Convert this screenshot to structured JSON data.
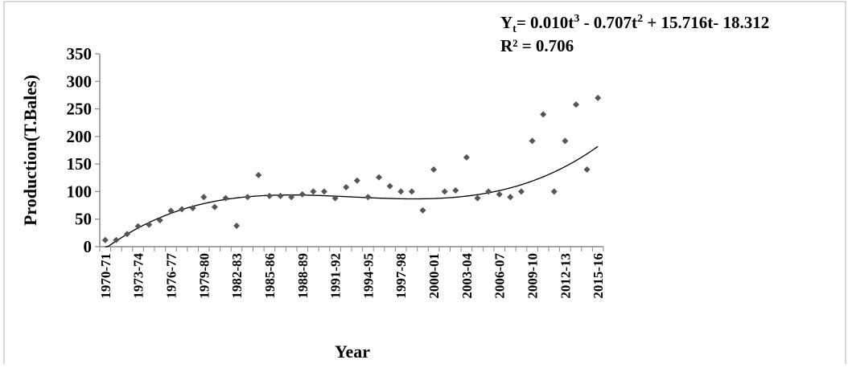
{
  "chart_data": {
    "type": "scatter",
    "title": "",
    "xlabel": "Year",
    "ylabel": "Production(T.Bales)",
    "ylim": [
      0,
      350
    ],
    "yticks": [
      0,
      50,
      100,
      150,
      200,
      250,
      300,
      350
    ],
    "grid": false,
    "legend": "none",
    "x": [
      "1970-71",
      "1971-72",
      "1972-73",
      "1973-74",
      "1974-75",
      "1975-76",
      "1976-77",
      "1977-78",
      "1978-79",
      "1979-80",
      "1980-81",
      "1981-82",
      "1982-83",
      "1983-84",
      "1984-85",
      "1985-86",
      "1986-87",
      "1987-88",
      "1988-89",
      "1989-90",
      "1990-91",
      "1991-92",
      "1992-93",
      "1993-94",
      "1994-95",
      "1995-96",
      "1996-97",
      "1997-98",
      "1998-99",
      "1999-00",
      "2000-01",
      "2001-02",
      "2002-03",
      "2003-04",
      "2004-05",
      "2005-06",
      "2006-07",
      "2007-08",
      "2008-09",
      "2009-10",
      "2010-11",
      "2011-12",
      "2012-13",
      "2013-14",
      "2014-15",
      "2015-16"
    ],
    "xtick_labels": [
      "1970-71",
      "1973-74",
      "1976-77",
      "1979-80",
      "1982-83",
      "1985-86",
      "1988-89",
      "1991-92",
      "1994-95",
      "1997-98",
      "2000-01",
      "2003-04",
      "2006-07",
      "2009-10",
      "2012-13",
      "2015-16"
    ],
    "series": [
      {
        "values": [
          12,
          12,
          23,
          37,
          40,
          48,
          65,
          68,
          70,
          90,
          72,
          88,
          38,
          90,
          130,
          92,
          92,
          90,
          95,
          100,
          100,
          88,
          108,
          120,
          90,
          126,
          110,
          100,
          100,
          66,
          140,
          100,
          102,
          162,
          88,
          100,
          95,
          90,
          100,
          192,
          240,
          100,
          192,
          258,
          140,
          270
        ],
        "marker_color": "#555555"
      }
    ],
    "trendline": {
      "type": "polynomial-3",
      "coefficients": {
        "a3": 0.01,
        "a2": -0.707,
        "a1": 15.716,
        "a0": -18.312
      },
      "color": "#000000"
    },
    "annotations": {
      "equation": {
        "lhs": "Y",
        "sub": "t",
        "p1": "= 0.010t",
        "sup1": "3",
        "p2": " - 0.707t",
        "sup2": "2",
        "p3": " + 15.716t- 18.312"
      },
      "r2": "R² = 0.706"
    }
  }
}
